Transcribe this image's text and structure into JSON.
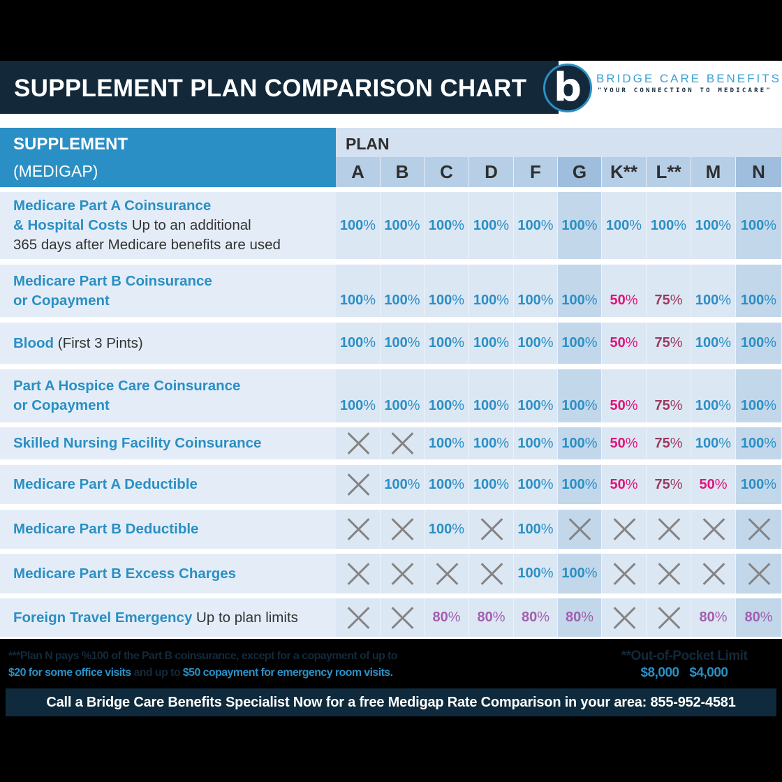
{
  "header": {
    "title": "SUPPLEMENT PLAN COMPARISON CHART",
    "logo": {
      "icon": "letter-b-logo-icon",
      "letter": "b",
      "brand_name": "BRIDGE CARE BENEFITS",
      "tagline": "\"YOUR CONNECTION TO MEDICARE\""
    }
  },
  "table": {
    "header_left": {
      "line1": "SUPPLEMENT",
      "line2": "(MEDIGAP)"
    },
    "plan_label": "PLAN",
    "plans": [
      "A",
      "B",
      "C",
      "D",
      "F",
      "G",
      "K**",
      "L**",
      "M",
      "N"
    ],
    "highlighted_plans": [
      "G",
      "N"
    ],
    "rows": [
      {
        "bold": "Medicare Part A Coinsurance & Hospital Costs",
        "bold_line1": "Medicare Part A Coinsurance",
        "bold_line2": "& Hospital Costs",
        "normal": " Up to an additional",
        "normal_line3": "365 days after Medicare benefits are used",
        "values": [
          "100%",
          "100%",
          "100%",
          "100%",
          "100%",
          "100%",
          "100%",
          "100%",
          "100%",
          "100%"
        ]
      },
      {
        "bold_line1": "Medicare Part B Coinsurance",
        "bold_line2": "or Copayment",
        "values": [
          "100%",
          "100%",
          "100%",
          "100%",
          "100%",
          "100%",
          "50%",
          "75%",
          "100%",
          "100%"
        ]
      },
      {
        "bold_line1": "Blood",
        "normal": " (First 3 Pints)",
        "values": [
          "100%",
          "100%",
          "100%",
          "100%",
          "100%",
          "100%",
          "50%",
          "75%",
          "100%",
          "100%"
        ]
      },
      {
        "bold_line1": "Part A Hospice Care Coinsurance",
        "bold_line2": "or Copayment",
        "values": [
          "100%",
          "100%",
          "100%",
          "100%",
          "100%",
          "100%",
          "50%",
          "75%",
          "100%",
          "100%"
        ]
      },
      {
        "bold_line1": "Skilled Nursing Facility Coinsurance",
        "values": [
          "X",
          "X",
          "100%",
          "100%",
          "100%",
          "100%",
          "50%",
          "75%",
          "100%",
          "100%"
        ]
      },
      {
        "bold_line1": "Medicare Part A Deductible",
        "values": [
          "X",
          "100%",
          "100%",
          "100%",
          "100%",
          "100%",
          "50%",
          "75%",
          "50%",
          "100%"
        ]
      },
      {
        "bold_line1": "Medicare Part B Deductible",
        "values": [
          "X",
          "X",
          "100%",
          "X",
          "100%",
          "X",
          "X",
          "X",
          "X",
          "X"
        ]
      },
      {
        "bold_line1": "Medicare Part B Excess Charges",
        "values": [
          "X",
          "X",
          "X",
          "X",
          "100%",
          "100%",
          "X",
          "X",
          "X",
          "X"
        ]
      },
      {
        "bold_line1": "Foreign Travel Emergency",
        "normal": " Up to plan limits",
        "values": [
          "X",
          "X",
          "80%",
          "80%",
          "80%",
          "80%",
          "X",
          "X",
          "80%",
          "80%"
        ]
      }
    ],
    "not_covered_icon": "x-mark-icon"
  },
  "colors": {
    "navy": "#13293a",
    "blue": "#2a8fc4",
    "pink": "#e2137a",
    "maroon": "#9b3a5e",
    "purple": "#a15fae",
    "x_gray": "#858383"
  },
  "footer": {
    "note_part1": "***Plan N pays %100 of the Part B coinsurance, except for a copayment of up to",
    "note_hl1": "$20 for some office visits",
    "note_part2": " and up to ",
    "note_hl2": "$50 copayment for emergency room visits.",
    "oop_label": "**Out-of-Pocket Limit",
    "oop_amounts": "$8,000 $4,000",
    "cta": "Call a Bridge Care Benefits Specialist Now for a free Medigap Rate Comparison in your area: 855-952-4581"
  }
}
